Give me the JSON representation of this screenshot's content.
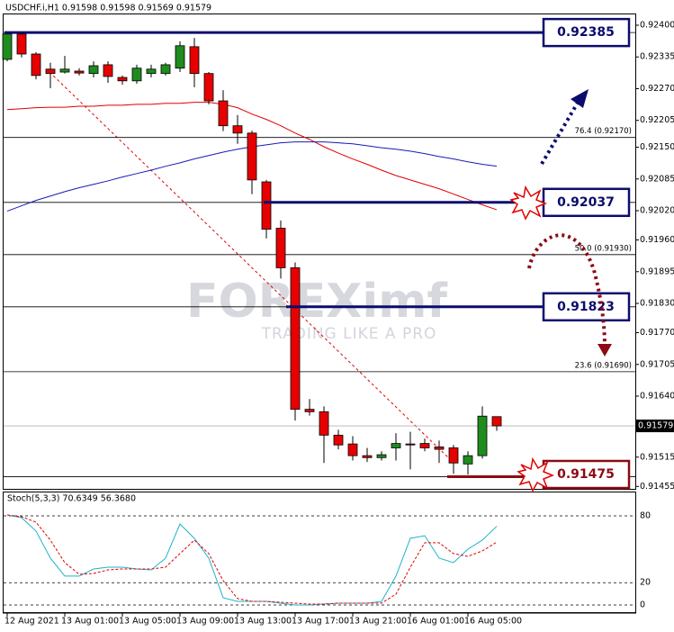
{
  "chart_data": [
    {
      "type": "candlestick",
      "title": "USDCHF.i,H1  0.91598 0.91598 0.91569 0.91579",
      "watermark": "FOREXimf",
      "tagline": "TRADING LIKE A PRO",
      "categories": [
        "12 Aug 2021",
        null,
        null,
        null,
        "13 Aug 01:00",
        null,
        null,
        null,
        "13 Aug 05:00",
        null,
        null,
        null,
        "13 Aug 09:00",
        null,
        null,
        null,
        "13 Aug 13:00",
        null,
        null,
        null,
        "13 Aug 17:00",
        null,
        null,
        null,
        "13 Aug 21:00",
        null,
        null,
        null,
        "16 Aug 01:00",
        null,
        null,
        null,
        "16 Aug 05:00",
        null,
        null
      ],
      "open": [
        0.9233,
        0.92382,
        0.92341,
        0.9231,
        0.92304,
        0.92306,
        0.92301,
        0.92319,
        0.92293,
        0.92286,
        0.92301,
        0.92301,
        0.92312,
        0.92356,
        0.92301,
        0.92245,
        0.92194,
        0.92179,
        0.92079,
        0.91984,
        0.91903,
        0.91613,
        0.91608,
        0.9156,
        0.91542,
        0.91518,
        0.91514,
        0.91534,
        0.91542,
        0.91543,
        0.91536,
        0.91534,
        0.91501,
        0.91518,
        0.91598
      ],
      "high": [
        0.92387,
        0.92387,
        0.92345,
        0.92323,
        0.92337,
        0.92312,
        0.92326,
        0.92326,
        0.92297,
        0.92319,
        0.92319,
        0.92323,
        0.92367,
        0.92374,
        0.92304,
        0.92267,
        0.92216,
        0.92184,
        0.92083,
        0.92,
        0.91914,
        0.91634,
        0.91619,
        0.91571,
        0.91558,
        0.91534,
        0.91527,
        0.91564,
        0.91567,
        0.91553,
        0.91549,
        0.9154,
        0.91527,
        0.91619,
        0.91598
      ],
      "low": [
        0.92326,
        0.92334,
        0.92289,
        0.92271,
        0.92301,
        0.92297,
        0.92293,
        0.92282,
        0.92278,
        0.9228,
        0.92293,
        0.92297,
        0.92304,
        0.92273,
        0.92238,
        0.92183,
        0.92157,
        0.92054,
        0.91963,
        0.91881,
        0.9159,
        0.916,
        0.91503,
        0.91531,
        0.91508,
        0.91505,
        0.91508,
        0.91508,
        0.9149,
        0.91527,
        0.91503,
        0.91481,
        0.91479,
        0.91512,
        0.91569
      ],
      "close": [
        0.92382,
        0.92341,
        0.92297,
        0.92301,
        0.9231,
        0.92302,
        0.92317,
        0.92295,
        0.92286,
        0.92312,
        0.9231,
        0.92319,
        0.92358,
        0.92301,
        0.92245,
        0.92194,
        0.92179,
        0.92083,
        0.91982,
        0.91903,
        0.91613,
        0.91608,
        0.9156,
        0.9154,
        0.91518,
        0.91514,
        0.9152,
        0.91543,
        0.9154,
        0.91534,
        0.91531,
        0.91503,
        0.91518,
        0.91599,
        0.91579
      ],
      "up_color": "#1e8c1e",
      "down_color": "#e60000",
      "series": [
        {
          "color": "#e00000",
          "values": [
            0.92227,
            0.92229,
            0.92231,
            0.92232,
            0.92232,
            0.92234,
            0.92234,
            0.92236,
            0.92236,
            0.92238,
            0.92238,
            0.9224,
            0.9224,
            0.92242,
            0.92242,
            0.92238,
            0.92231,
            0.92218,
            0.92207,
            0.92194,
            0.92179,
            0.92166,
            0.92151,
            0.92138,
            0.92126,
            0.92115,
            0.92103,
            0.92092,
            0.92083,
            0.92074,
            0.92065,
            0.92054,
            0.92043,
            0.92032,
            0.92022
          ]
        },
        {
          "color": "#1a1ab4",
          "values": [
            0.92019,
            0.9203,
            0.92041,
            0.9205,
            0.92059,
            0.92067,
            0.92074,
            0.92081,
            0.92089,
            0.92096,
            0.92103,
            0.92111,
            0.92118,
            0.92126,
            0.92133,
            0.9214,
            0.92146,
            0.92151,
            0.92155,
            0.92159,
            0.92161,
            0.92161,
            0.92161,
            0.92159,
            0.92157,
            0.92153,
            0.92149,
            0.92146,
            0.92142,
            0.92137,
            0.92131,
            0.92126,
            0.9212,
            0.92115,
            0.92111
          ]
        }
      ],
      "levels": [
        0.92385,
        0.92037,
        0.91823,
        0.91475
      ],
      "level_colors": [
        "#0c0c6e",
        "#0c0c6e",
        "#0c0c6e",
        "#8c0a14"
      ],
      "fib_levels": [
        {
          "value": 0.9217,
          "label": "76.4 (0.92170)"
        },
        {
          "value": 0.9193,
          "label": "50.0 (0.91930)"
        },
        {
          "value": 0.9169,
          "label": "23.6 (0.91690)"
        }
      ],
      "ylim": [
        0.9145,
        0.92424
      ],
      "yticks": [
        {
          "value": 0.924,
          "label": "0.92400"
        },
        0.92335,
        {
          "value": 0.9227,
          "label": "0.92270"
        },
        0.92205,
        {
          "value": 0.9215,
          "label": "0.92150"
        },
        0.92085,
        {
          "value": 0.9202,
          "label": "0.92020"
        },
        {
          "value": 0.9196,
          "label": "0.91960"
        },
        0.91895,
        {
          "value": 0.9183,
          "label": "0.91830"
        },
        {
          "value": 0.9177,
          "label": "0.91770"
        },
        0.91705,
        {
          "value": 0.9164,
          "label": "0.91640"
        },
        0.91515,
        0.91455
      ]
    },
    {
      "type": "line",
      "title": "Stoch(5,3,3) 70.6349 56.3680",
      "series": [
        {
          "color": "#20b2c8",
          "values": [
            80.8,
            78.4,
            66.3,
            42.0,
            25.9,
            25.9,
            32.3,
            33.9,
            33.9,
            32.3,
            31.5,
            42.0,
            72.7,
            59.8,
            42.0,
            6.5,
            3.2,
            3.2,
            3.2,
            1.6,
            0,
            0,
            0.8,
            1.6,
            1.6,
            1.6,
            3.2,
            25.9,
            59.8,
            62.2,
            42.0,
            38.0,
            50.1,
            58.2,
            70.6349
          ]
        },
        {
          "color": "#e00000",
          "dashed": true,
          "values": [
            80.8,
            79.2,
            74.3,
            58.2,
            38.0,
            27.5,
            28.3,
            31.5,
            32.3,
            32.3,
            32.3,
            33.9,
            46.1,
            58.2,
            46.1,
            21.8,
            5.7,
            3.2,
            3.2,
            2.4,
            1.6,
            0.8,
            0.8,
            1.6,
            1.6,
            1.6,
            1.6,
            9.7,
            33.9,
            55.8,
            55.8,
            46.1,
            43.6,
            48.5,
            56.368
          ]
        }
      ],
      "ylim": [
        -7.3,
        101.8
      ],
      "yticks": [
        80,
        20,
        0
      ]
    }
  ]
}
